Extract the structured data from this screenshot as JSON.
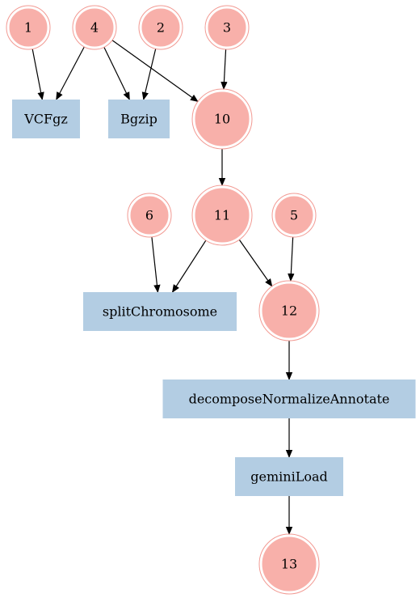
{
  "colors": {
    "circle_fill": "#f8b0aa",
    "circle_ring": "#f29a93",
    "rect_fill": "#b3cde3",
    "edge": "#000000",
    "background": "#ffffff"
  },
  "nodes": [
    {
      "id": "n1",
      "label": "1",
      "shape": "circle"
    },
    {
      "id": "n4",
      "label": "4",
      "shape": "circle"
    },
    {
      "id": "n2",
      "label": "2",
      "shape": "circle"
    },
    {
      "id": "n3",
      "label": "3",
      "shape": "circle"
    },
    {
      "id": "vcfgz",
      "label": "VCFgz",
      "shape": "rect"
    },
    {
      "id": "bgzip",
      "label": "Bgzip",
      "shape": "rect"
    },
    {
      "id": "n10",
      "label": "10",
      "shape": "circle"
    },
    {
      "id": "n6",
      "label": "6",
      "shape": "circle"
    },
    {
      "id": "n11",
      "label": "11",
      "shape": "circle"
    },
    {
      "id": "n5",
      "label": "5",
      "shape": "circle"
    },
    {
      "id": "splitchrom",
      "label": "splitChromosome",
      "shape": "rect"
    },
    {
      "id": "n12",
      "label": "12",
      "shape": "circle"
    },
    {
      "id": "dna",
      "label": "decomposeNormalizeAnnotate",
      "shape": "rect"
    },
    {
      "id": "gemini",
      "label": "geminiLoad",
      "shape": "rect"
    },
    {
      "id": "n13",
      "label": "13",
      "shape": "circle"
    }
  ],
  "edges": [
    {
      "from": "n1",
      "to": "vcfgz"
    },
    {
      "from": "n4",
      "to": "vcfgz"
    },
    {
      "from": "n4",
      "to": "bgzip"
    },
    {
      "from": "n4",
      "to": "n10"
    },
    {
      "from": "n2",
      "to": "bgzip"
    },
    {
      "from": "n3",
      "to": "n10"
    },
    {
      "from": "n10",
      "to": "n11"
    },
    {
      "from": "n6",
      "to": "splitchrom"
    },
    {
      "from": "n11",
      "to": "splitchrom"
    },
    {
      "from": "n11",
      "to": "n12"
    },
    {
      "from": "n5",
      "to": "n12"
    },
    {
      "from": "n12",
      "to": "dna"
    },
    {
      "from": "dna",
      "to": "gemini"
    },
    {
      "from": "gemini",
      "to": "n13"
    }
  ]
}
